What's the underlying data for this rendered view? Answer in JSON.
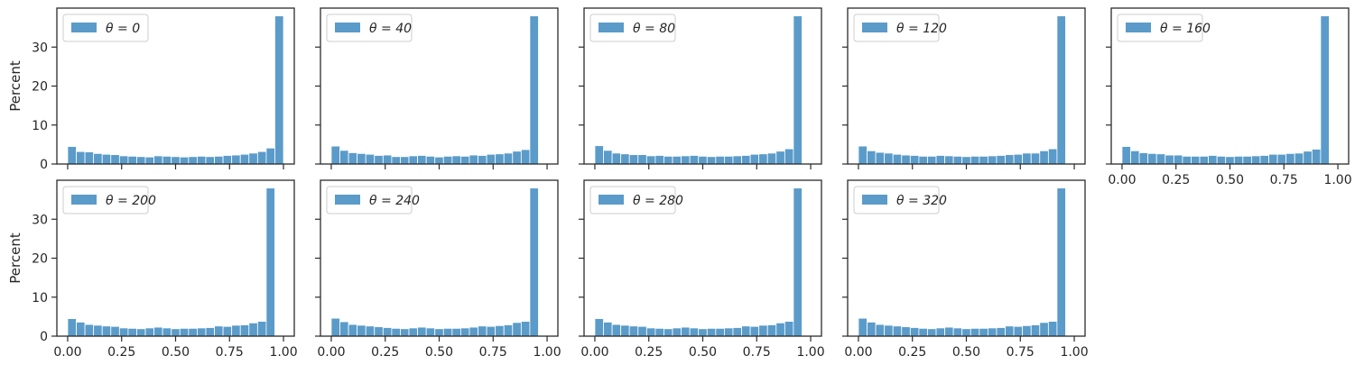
{
  "chart_data": {
    "type": "bar",
    "chart_kind": "histogram",
    "layout_grid": [
      2,
      5
    ],
    "bar_color": "#5a9bc9",
    "axis_color": "#2b2b2b",
    "bin_count": 25,
    "xlim": [
      -0.05,
      1.05
    ],
    "ylim": [
      0,
      40
    ],
    "x_ticks": [
      0.0,
      0.25,
      0.5,
      0.75,
      1.0
    ],
    "x_tick_labels": [
      "0.00",
      "0.25",
      "0.50",
      "0.75",
      "1.00"
    ],
    "y_ticks": [
      0,
      10,
      20,
      30
    ],
    "y_tick_labels": [
      "0",
      "10",
      "20",
      "30"
    ],
    "ylabel": "Percent",
    "xlabel": "",
    "legend_position": "upper-left",
    "panels": [
      {
        "legend": "θ = 0",
        "values": [
          4.5,
          3.2,
          3.1,
          2.7,
          2.5,
          2.4,
          2.1,
          2.0,
          1.9,
          1.8,
          2.1,
          2.0,
          1.9,
          1.8,
          1.9,
          2.0,
          1.9,
          2.0,
          2.2,
          2.3,
          2.5,
          2.8,
          3.2,
          4.1,
          38.0
        ]
      },
      {
        "legend": "θ = 40",
        "values": [
          4.6,
          3.5,
          2.9,
          2.7,
          2.5,
          2.2,
          2.3,
          1.9,
          1.9,
          2.1,
          2.2,
          2.0,
          1.8,
          2.0,
          2.1,
          2.0,
          2.3,
          2.2,
          2.5,
          2.6,
          2.8,
          3.3,
          3.7,
          38.0,
          0.0
        ]
      },
      {
        "legend": "θ = 80",
        "values": [
          4.7,
          3.5,
          2.8,
          2.6,
          2.4,
          2.4,
          2.1,
          2.2,
          2.0,
          2.0,
          2.1,
          2.2,
          2.0,
          1.9,
          2.0,
          2.0,
          2.1,
          2.2,
          2.5,
          2.6,
          2.8,
          3.3,
          3.9,
          38.0,
          0.0
        ]
      },
      {
        "legend": "θ = 120",
        "values": [
          4.6,
          3.4,
          3.0,
          2.8,
          2.5,
          2.3,
          2.2,
          2.0,
          2.0,
          2.2,
          2.1,
          2.0,
          1.9,
          2.0,
          2.0,
          2.1,
          2.2,
          2.4,
          2.5,
          2.8,
          2.8,
          3.4,
          3.9,
          38.0,
          0.0
        ]
      },
      {
        "legend": "θ = 160",
        "values": [
          4.5,
          3.4,
          2.9,
          2.7,
          2.6,
          2.3,
          2.3,
          2.0,
          2.0,
          2.0,
          2.2,
          2.0,
          1.9,
          2.0,
          2.0,
          2.1,
          2.2,
          2.5,
          2.5,
          2.7,
          2.8,
          3.3,
          3.8,
          38.0,
          0.0
        ]
      },
      {
        "legend": "θ = 200",
        "values": [
          4.5,
          3.6,
          3.0,
          2.8,
          2.6,
          2.5,
          2.1,
          2.0,
          1.9,
          2.1,
          2.3,
          2.1,
          1.9,
          2.0,
          2.0,
          2.1,
          2.2,
          2.6,
          2.5,
          2.8,
          2.9,
          3.4,
          3.8,
          38.0,
          0.0
        ]
      },
      {
        "legend": "θ = 240",
        "values": [
          4.6,
          3.7,
          3.0,
          2.8,
          2.6,
          2.4,
          2.2,
          2.0,
          1.9,
          2.1,
          2.3,
          2.1,
          1.9,
          2.0,
          2.0,
          2.1,
          2.3,
          2.6,
          2.5,
          2.7,
          2.9,
          3.5,
          3.8,
          38.0,
          0.0
        ]
      },
      {
        "legend": "θ = 280",
        "values": [
          4.5,
          3.6,
          3.0,
          2.8,
          2.6,
          2.5,
          2.1,
          2.0,
          1.9,
          2.1,
          2.3,
          2.1,
          1.9,
          2.0,
          2.0,
          2.1,
          2.2,
          2.6,
          2.5,
          2.8,
          2.9,
          3.4,
          3.8,
          38.0,
          0.0
        ]
      },
      {
        "legend": "θ = 320",
        "values": [
          4.6,
          3.6,
          3.0,
          2.8,
          2.6,
          2.4,
          2.2,
          2.0,
          1.9,
          2.1,
          2.3,
          2.1,
          1.9,
          2.0,
          2.0,
          2.1,
          2.2,
          2.6,
          2.5,
          2.7,
          2.9,
          3.5,
          3.8,
          38.0,
          0.0
        ]
      }
    ]
  }
}
